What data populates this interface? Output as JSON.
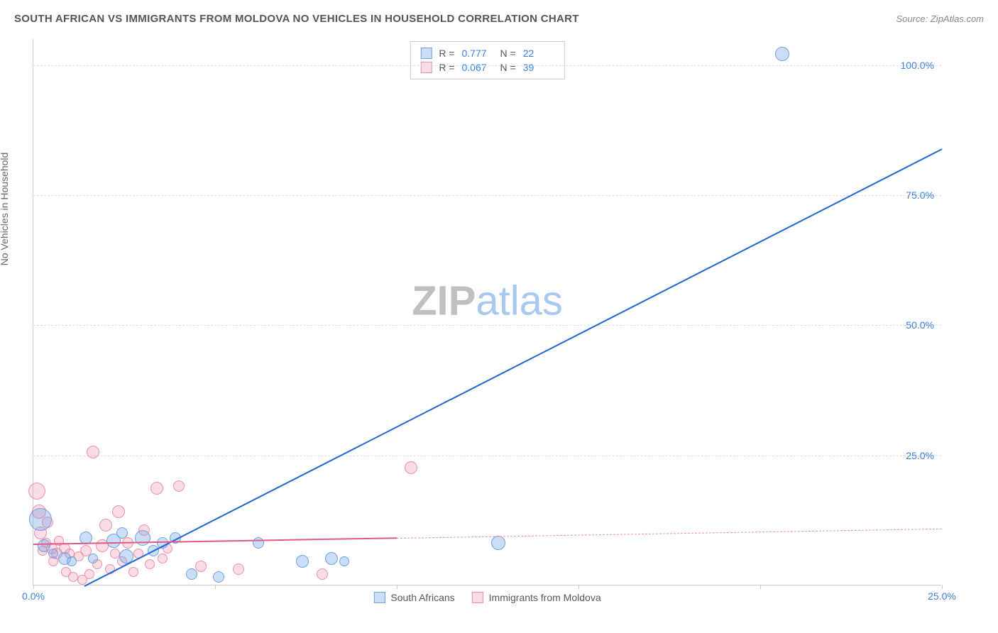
{
  "header": {
    "title": "SOUTH AFRICAN VS IMMIGRANTS FROM MOLDOVA NO VEHICLES IN HOUSEHOLD CORRELATION CHART",
    "source": "Source: ZipAtlas.com"
  },
  "ylabel": "No Vehicles in Household",
  "watermark": {
    "part1": "ZIP",
    "part2": "atlas"
  },
  "chart": {
    "xlim": [
      0,
      25
    ],
    "ylim": [
      0,
      105
    ],
    "background_color": "#ffffff",
    "grid_color": "#dddddd",
    "yticks": [
      {
        "v": 25,
        "label": "25.0%",
        "color": "#3a7fe0"
      },
      {
        "v": 50,
        "label": "50.0%",
        "color": "#3a7fe0"
      },
      {
        "v": 75,
        "label": "75.0%",
        "color": "#3a7fe0"
      },
      {
        "v": 100,
        "label": "100.0%",
        "color": "#3a7fe0"
      }
    ],
    "xticks": [
      {
        "v": 0,
        "label": "0.0%",
        "color": "#3a7fe0"
      },
      {
        "v": 5,
        "label": ""
      },
      {
        "v": 10,
        "label": ""
      },
      {
        "v": 15,
        "label": ""
      },
      {
        "v": 20,
        "label": ""
      },
      {
        "v": 25,
        "label": "25.0%",
        "color": "#3a7fe0"
      }
    ],
    "series": {
      "blue": {
        "label": "South Africans",
        "fill": "rgba(110,160,230,0.35)",
        "stroke": "#6da0e6",
        "trend_color": "#1e66d0",
        "trend_dash_color": "#1e66d0",
        "R": "0.777",
        "N": "22",
        "trend": {
          "x1": 1.4,
          "y1": 0,
          "x2": 25,
          "y2": 84
        },
        "points": [
          {
            "x": 0.2,
            "y": 12.5,
            "r": 16
          },
          {
            "x": 0.3,
            "y": 7.5,
            "r": 9
          },
          {
            "x": 0.55,
            "y": 6.0,
            "r": 7
          },
          {
            "x": 0.85,
            "y": 5.0,
            "r": 9
          },
          {
            "x": 1.05,
            "y": 4.5,
            "r": 7
          },
          {
            "x": 1.45,
            "y": 9.0,
            "r": 9
          },
          {
            "x": 1.65,
            "y": 5.0,
            "r": 7
          },
          {
            "x": 2.2,
            "y": 8.5,
            "r": 10
          },
          {
            "x": 2.45,
            "y": 10.0,
            "r": 8
          },
          {
            "x": 2.55,
            "y": 5.5,
            "r": 10
          },
          {
            "x": 3.0,
            "y": 9.0,
            "r": 11
          },
          {
            "x": 3.3,
            "y": 6.5,
            "r": 8
          },
          {
            "x": 3.55,
            "y": 8.0,
            "r": 8
          },
          {
            "x": 3.9,
            "y": 9.0,
            "r": 8
          },
          {
            "x": 4.35,
            "y": 2.0,
            "r": 8
          },
          {
            "x": 5.1,
            "y": 1.5,
            "r": 8
          },
          {
            "x": 6.2,
            "y": 8.0,
            "r": 8
          },
          {
            "x": 7.4,
            "y": 4.5,
            "r": 9
          },
          {
            "x": 8.2,
            "y": 5.0,
            "r": 9
          },
          {
            "x": 8.55,
            "y": 4.5,
            "r": 7
          },
          {
            "x": 12.8,
            "y": 8.0,
            "r": 10
          },
          {
            "x": 20.6,
            "y": 102.0,
            "r": 10
          }
        ]
      },
      "pink": {
        "label": "Immigrants from Moldova",
        "fill": "rgba(240,140,165,0.30)",
        "stroke": "#ec8fa8",
        "trend_color": "#e05a84",
        "trend_dash_color": "#ec8fa8",
        "R": "0.067",
        "N": "39",
        "trend": {
          "x1": 0,
          "y1": 8.0,
          "x2": 25,
          "y2": 11.0
        },
        "trend_solid_until_x": 10.0,
        "points": [
          {
            "x": 0.1,
            "y": 18.0,
            "r": 12
          },
          {
            "x": 0.15,
            "y": 14.0,
            "r": 10
          },
          {
            "x": 0.2,
            "y": 10.0,
            "r": 9
          },
          {
            "x": 0.25,
            "y": 6.5,
            "r": 7
          },
          {
            "x": 0.35,
            "y": 8.0,
            "r": 7
          },
          {
            "x": 0.4,
            "y": 12.0,
            "r": 8
          },
          {
            "x": 0.5,
            "y": 7.0,
            "r": 8
          },
          {
            "x": 0.55,
            "y": 4.5,
            "r": 7
          },
          {
            "x": 0.65,
            "y": 6.0,
            "r": 8
          },
          {
            "x": 0.7,
            "y": 8.5,
            "r": 7
          },
          {
            "x": 0.85,
            "y": 7.0,
            "r": 8
          },
          {
            "x": 0.9,
            "y": 2.5,
            "r": 7
          },
          {
            "x": 1.0,
            "y": 6.0,
            "r": 7
          },
          {
            "x": 1.1,
            "y": 1.5,
            "r": 7
          },
          {
            "x": 1.25,
            "y": 5.5,
            "r": 7
          },
          {
            "x": 1.35,
            "y": 1.0,
            "r": 7
          },
          {
            "x": 1.45,
            "y": 6.5,
            "r": 8
          },
          {
            "x": 1.55,
            "y": 2.0,
            "r": 7
          },
          {
            "x": 1.65,
            "y": 25.5,
            "r": 9
          },
          {
            "x": 1.75,
            "y": 4.0,
            "r": 7
          },
          {
            "x": 1.9,
            "y": 7.5,
            "r": 9
          },
          {
            "x": 2.0,
            "y": 11.5,
            "r": 9
          },
          {
            "x": 2.1,
            "y": 3.0,
            "r": 7
          },
          {
            "x": 2.25,
            "y": 6.0,
            "r": 7
          },
          {
            "x": 2.35,
            "y": 14.0,
            "r": 9
          },
          {
            "x": 2.45,
            "y": 4.5,
            "r": 7
          },
          {
            "x": 2.6,
            "y": 8.0,
            "r": 8
          },
          {
            "x": 2.75,
            "y": 2.5,
            "r": 7
          },
          {
            "x": 2.9,
            "y": 6.0,
            "r": 7
          },
          {
            "x": 3.05,
            "y": 10.5,
            "r": 8
          },
          {
            "x": 3.2,
            "y": 4.0,
            "r": 7
          },
          {
            "x": 3.4,
            "y": 18.5,
            "r": 9
          },
          {
            "x": 3.55,
            "y": 5.0,
            "r": 7
          },
          {
            "x": 3.7,
            "y": 7.0,
            "r": 7
          },
          {
            "x": 4.0,
            "y": 19.0,
            "r": 8
          },
          {
            "x": 4.6,
            "y": 3.5,
            "r": 8
          },
          {
            "x": 5.65,
            "y": 3.0,
            "r": 8
          },
          {
            "x": 7.95,
            "y": 2.0,
            "r": 8
          },
          {
            "x": 10.4,
            "y": 22.5,
            "r": 9
          }
        ]
      }
    }
  },
  "legend": {
    "blue_label": "South Africans",
    "pink_label": "Immigrants from Moldova"
  },
  "stats_labels": {
    "R": "R =",
    "N": "N ="
  }
}
